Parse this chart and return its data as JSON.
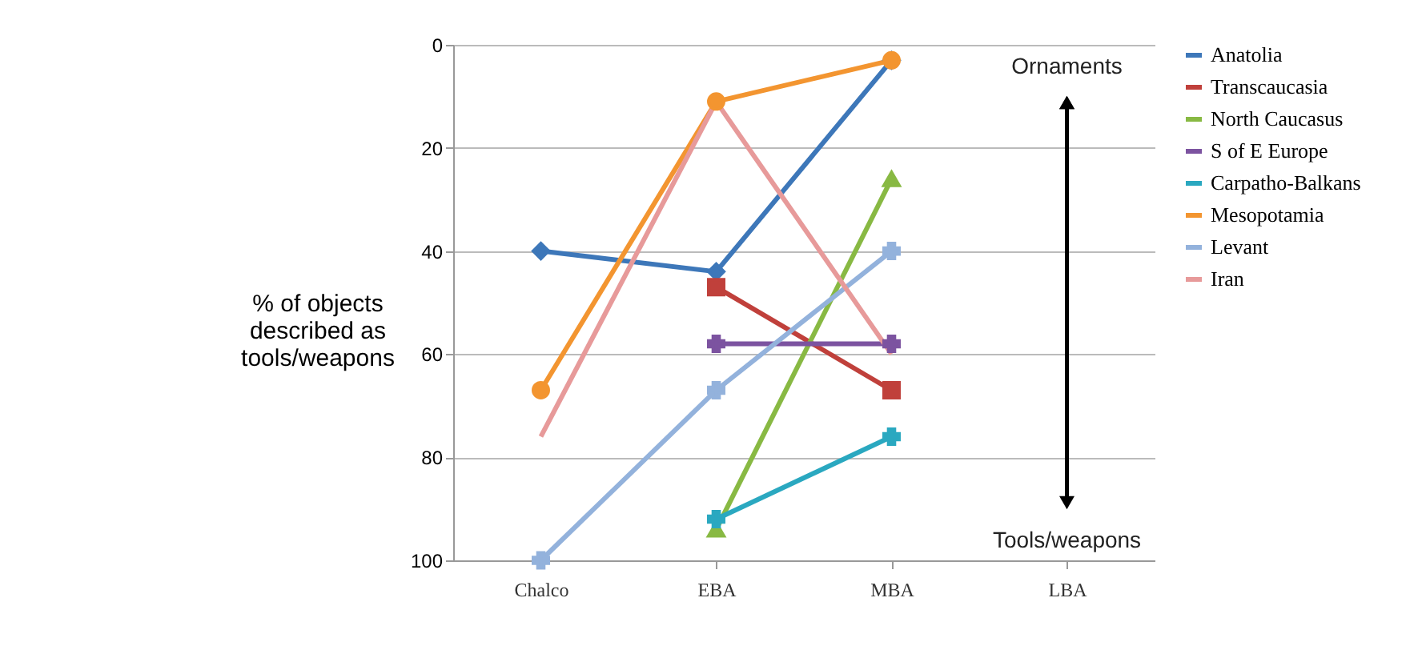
{
  "chart_data": {
    "type": "line",
    "ylabel": "% of objects described as tools/weapons",
    "categories": [
      "Chalco",
      "EBA",
      "MBA",
      "LBA"
    ],
    "ylim": [
      100,
      0
    ],
    "yticks": [
      0,
      20,
      40,
      60,
      80,
      100
    ],
    "grid": "y",
    "legend": "right",
    "annotations": [
      "Ornaments",
      "Tools/weapons"
    ],
    "series": [
      {
        "name": "Anatolia",
        "color": "#3d77b9",
        "marker": "diamond",
        "values": [
          40,
          44,
          3,
          null
        ]
      },
      {
        "name": "Transcaucasia",
        "color": "#c0403b",
        "marker": "square",
        "values": [
          null,
          47,
          67,
          null
        ]
      },
      {
        "name": "North Caucasus",
        "color": "#88b943",
        "marker": "triangle",
        "values": [
          null,
          94,
          26,
          null
        ]
      },
      {
        "name": "S of E Europe",
        "color": "#7c53a0",
        "marker": "cross",
        "values": [
          null,
          58,
          58,
          null
        ]
      },
      {
        "name": "Carpatho-Balkans",
        "color": "#2aa8c0",
        "marker": "cross",
        "values": [
          null,
          92,
          76,
          null
        ]
      },
      {
        "name": "Mesopotamia",
        "color": "#f39530",
        "marker": "circle",
        "values": [
          67,
          11,
          3,
          null
        ]
      },
      {
        "name": "Levant",
        "color": "#93b2dc",
        "marker": "cross",
        "values": [
          100,
          67,
          40,
          null
        ]
      },
      {
        "name": "Iran",
        "color": "#e79a9a",
        "marker": "none",
        "values": [
          76,
          11,
          60,
          null
        ]
      }
    ]
  }
}
